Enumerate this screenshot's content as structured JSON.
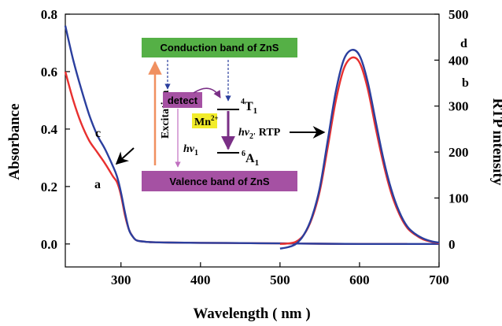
{
  "chart_data": {
    "type": "line",
    "xlabel": "Wavelength ( nm )",
    "ylabel": "Absorbance",
    "y2label": "RTP intensity",
    "xlim": [
      230,
      700
    ],
    "ylim": [
      -0.08,
      0.8
    ],
    "y2lim": [
      -50,
      500
    ],
    "x_ticks": [
      300,
      400,
      500,
      600,
      700
    ],
    "y_ticks": [
      0.0,
      0.2,
      0.4,
      0.6,
      0.8
    ],
    "y2_ticks": [
      0,
      100,
      200,
      300,
      400,
      500
    ],
    "grid": false,
    "legend": "none",
    "series": [
      {
        "name": "a",
        "axis": "left",
        "color": "#e8302f",
        "x": [
          230,
          240,
          250,
          260,
          270,
          280,
          290,
          295,
          300,
          305,
          310,
          315,
          320,
          330,
          340,
          360,
          400,
          450,
          500,
          550,
          600,
          660
        ],
        "y": [
          0.6,
          0.5,
          0.42,
          0.36,
          0.32,
          0.28,
          0.235,
          0.215,
          0.17,
          0.1,
          0.05,
          0.025,
          0.012,
          0.008,
          0.006,
          0.005,
          0.004,
          0.003,
          0.002,
          0.001,
          0.0,
          0.0
        ]
      },
      {
        "name": "c",
        "axis": "left",
        "color": "#2b3f9e",
        "x": [
          230,
          240,
          250,
          260,
          270,
          280,
          290,
          295,
          300,
          305,
          310,
          315,
          320,
          330,
          340,
          360,
          400,
          450,
          500,
          550,
          600,
          700
        ],
        "y": [
          0.76,
          0.64,
          0.54,
          0.45,
          0.38,
          0.33,
          0.27,
          0.235,
          0.18,
          0.11,
          0.05,
          0.025,
          0.012,
          0.008,
          0.006,
          0.005,
          0.004,
          0.003,
          0.002,
          0.001,
          0.0,
          0.0
        ]
      },
      {
        "name": "b",
        "axis": "right",
        "color": "#e8302f",
        "x": [
          500,
          510,
          520,
          530,
          540,
          550,
          560,
          570,
          580,
          590,
          600,
          610,
          620,
          630,
          640,
          650,
          660,
          670,
          680,
          690,
          700
        ],
        "y": [
          0,
          1,
          5,
          20,
          55,
          115,
          210,
          310,
          380,
          405,
          395,
          340,
          255,
          175,
          110,
          65,
          35,
          20,
          10,
          5,
          2
        ]
      },
      {
        "name": "d",
        "axis": "right",
        "color": "#2b3f9e",
        "x": [
          500,
          510,
          520,
          530,
          540,
          550,
          560,
          570,
          580,
          590,
          600,
          610,
          620,
          630,
          640,
          650,
          660,
          670,
          680,
          690,
          700
        ],
        "y": [
          -10,
          -7,
          0,
          20,
          58,
          122,
          225,
          330,
          400,
          422,
          410,
          355,
          270,
          185,
          118,
          70,
          38,
          22,
          12,
          6,
          3
        ]
      }
    ],
    "curve_labels": [
      "a",
      "b",
      "c",
      "d"
    ]
  },
  "inset_diagram": {
    "conduction_band": "Conduction band of ZnS",
    "valence_band": "Valence band of ZnS",
    "excitation": "Excitation",
    "detect": "detect",
    "mn": "Mn",
    "mn_sup": "2+",
    "t1_sup": "4",
    "t1": "T",
    "t1_sub": "1",
    "a1_sup": "6",
    "a1": "A",
    "a1_sub": "1",
    "hv1_h": "hv",
    "hv1_sub": "1",
    "hv2_h": "hv",
    "hv2_sub": "2'",
    "rtp": "RTP",
    "colors": {
      "conduction": "#55b046",
      "valence": "#a551a3",
      "detect": "#a551a3",
      "mn": "#f2ec2a",
      "excitation_arrow": "#f09060",
      "arrow": "#7a2f86"
    }
  }
}
